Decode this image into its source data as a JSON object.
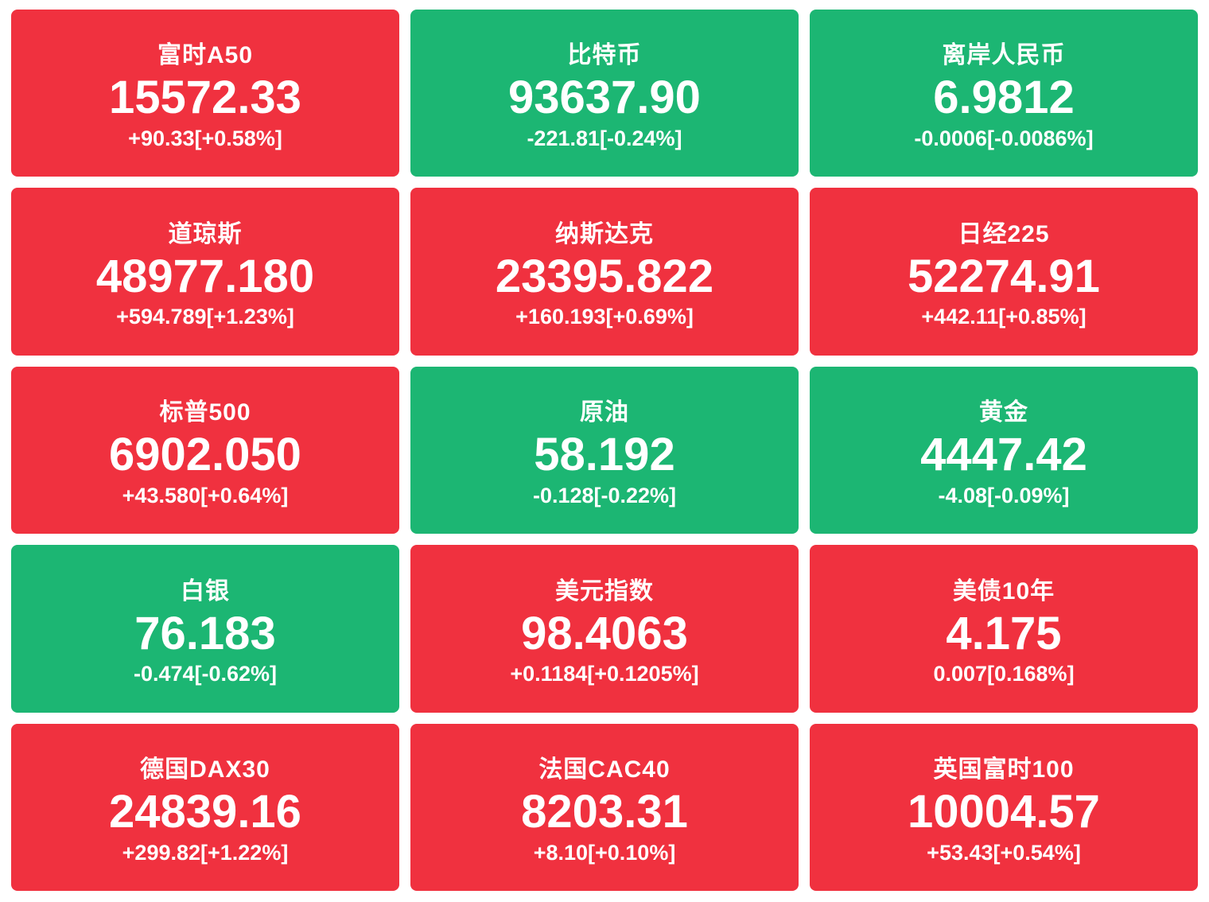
{
  "colors": {
    "up": "#f0313f",
    "down": "#1cb673",
    "text": "#ffffff"
  },
  "tiles": [
    {
      "name": "富时A50",
      "value": "15572.33",
      "change": "+90.33[+0.58%]",
      "trend": "up"
    },
    {
      "name": "比特币",
      "value": "93637.90",
      "change": "-221.81[-0.24%]",
      "trend": "down"
    },
    {
      "name": "离岸人民币",
      "value": "6.9812",
      "change": "-0.0006[-0.0086%]",
      "trend": "down"
    },
    {
      "name": "道琼斯",
      "value": "48977.180",
      "change": "+594.789[+1.23%]",
      "trend": "up"
    },
    {
      "name": "纳斯达克",
      "value": "23395.822",
      "change": "+160.193[+0.69%]",
      "trend": "up"
    },
    {
      "name": "日经225",
      "value": "52274.91",
      "change": "+442.11[+0.85%]",
      "trend": "up"
    },
    {
      "name": "标普500",
      "value": "6902.050",
      "change": "+43.580[+0.64%]",
      "trend": "up"
    },
    {
      "name": "原油",
      "value": "58.192",
      "change": "-0.128[-0.22%]",
      "trend": "down"
    },
    {
      "name": "黄金",
      "value": "4447.42",
      "change": "-4.08[-0.09%]",
      "trend": "down"
    },
    {
      "name": "白银",
      "value": "76.183",
      "change": "-0.474[-0.62%]",
      "trend": "down"
    },
    {
      "name": "美元指数",
      "value": "98.4063",
      "change": "+0.1184[+0.1205%]",
      "trend": "up"
    },
    {
      "name": "美债10年",
      "value": "4.175",
      "change": "0.007[0.168%]",
      "trend": "up"
    },
    {
      "name": "德国DAX30",
      "value": "24839.16",
      "change": "+299.82[+1.22%]",
      "trend": "up"
    },
    {
      "name": "法国CAC40",
      "value": "8203.31",
      "change": "+8.10[+0.10%]",
      "trend": "up"
    },
    {
      "name": "英国富时100",
      "value": "10004.57",
      "change": "+53.43[+0.54%]",
      "trend": "up"
    }
  ]
}
